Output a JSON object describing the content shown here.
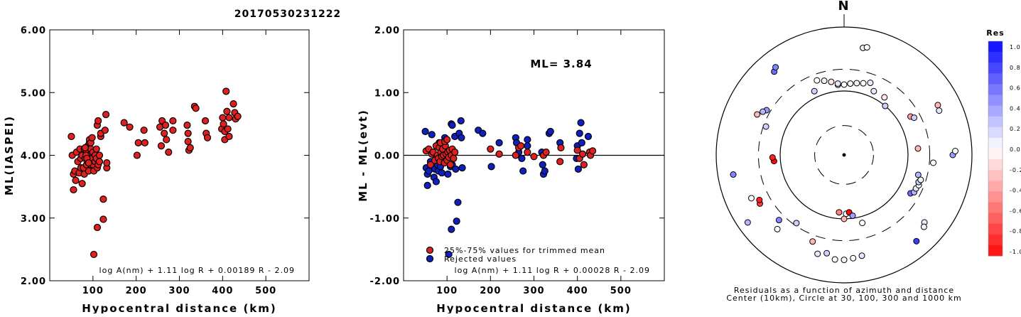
{
  "title": "20170530231222",
  "north_label": "N",
  "chart_data": [
    {
      "type": "scatter",
      "id": "left",
      "xlabel": "Hypocentral distance (km)",
      "ylabel": "ML(IASPEI)",
      "xlim": [
        0,
        600
      ],
      "ylim": [
        2.0,
        6.0
      ],
      "xticks": [
        "100",
        "200",
        "300",
        "400",
        "500"
      ],
      "yticks": [
        "2.00",
        "3.00",
        "4.00",
        "5.00",
        "6.00"
      ],
      "formula": "log A(nm) + 1.11 log R + 0.00189 R - 2.09",
      "point_color": "#e02020",
      "points": [
        [
          50,
          4.3
        ],
        [
          52,
          4.0
        ],
        [
          55,
          3.45
        ],
        [
          55,
          3.7
        ],
        [
          58,
          3.75
        ],
        [
          60,
          3.6
        ],
        [
          62,
          4.05
        ],
        [
          65,
          3.9
        ],
        [
          68,
          3.72
        ],
        [
          70,
          4.1
        ],
        [
          72,
          3.8
        ],
        [
          72,
          3.95
        ],
        [
          75,
          3.55
        ],
        [
          75,
          4.0
        ],
        [
          78,
          3.8
        ],
        [
          80,
          4.1
        ],
        [
          80,
          3.7
        ],
        [
          82,
          3.95
        ],
        [
          85,
          4.05
        ],
        [
          85,
          3.85
        ],
        [
          88,
          4.15
        ],
        [
          88,
          3.9
        ],
        [
          90,
          3.75
        ],
        [
          92,
          4.0
        ],
        [
          92,
          4.2
        ],
        [
          95,
          3.85
        ],
        [
          95,
          4.1
        ],
        [
          98,
          3.95
        ],
        [
          100,
          4.05
        ],
        [
          100,
          3.85
        ],
        [
          102,
          3.75
        ],
        [
          105,
          4.0
        ],
        [
          105,
          3.9
        ],
        [
          108,
          3.95
        ],
        [
          108,
          4.1
        ],
        [
          110,
          3.8
        ],
        [
          112,
          3.85
        ],
        [
          115,
          3.9
        ],
        [
          115,
          4.0
        ],
        [
          118,
          4.3
        ],
        [
          92,
          4.25
        ],
        [
          95,
          4.2
        ],
        [
          98,
          4.28
        ],
        [
          82,
          4.12
        ],
        [
          84,
          4.0
        ],
        [
          86,
          3.95
        ],
        [
          90,
          3.88
        ],
        [
          110,
          4.48
        ],
        [
          112,
          4.55
        ],
        [
          118,
          4.35
        ],
        [
          128,
          4.4
        ],
        [
          130,
          4.65
        ],
        [
          132,
          3.8
        ],
        [
          132,
          3.88
        ],
        [
          102,
          2.42
        ],
        [
          110,
          2.85
        ],
        [
          124,
          2.98
        ],
        [
          124,
          3.3
        ],
        [
          172,
          4.52
        ],
        [
          185,
          4.45
        ],
        [
          202,
          4.0
        ],
        [
          205,
          4.2
        ],
        [
          218,
          4.4
        ],
        [
          220,
          4.2
        ],
        [
          255,
          4.45
        ],
        [
          258,
          4.15
        ],
        [
          260,
          4.55
        ],
        [
          265,
          4.35
        ],
        [
          268,
          4.48
        ],
        [
          270,
          4.25
        ],
        [
          275,
          4.05
        ],
        [
          285,
          4.55
        ],
        [
          285,
          4.4
        ],
        [
          318,
          4.48
        ],
        [
          320,
          4.35
        ],
        [
          320,
          4.22
        ],
        [
          322,
          4.08
        ],
        [
          325,
          4.12
        ],
        [
          335,
          4.78
        ],
        [
          338,
          4.75
        ],
        [
          360,
          4.55
        ],
        [
          362,
          4.35
        ],
        [
          365,
          4.28
        ],
        [
          398,
          4.42
        ],
        [
          400,
          4.6
        ],
        [
          402,
          4.5
        ],
        [
          405,
          4.25
        ],
        [
          405,
          4.38
        ],
        [
          408,
          5.02
        ],
        [
          410,
          4.7
        ],
        [
          412,
          4.42
        ],
        [
          415,
          4.6
        ],
        [
          415,
          4.3
        ],
        [
          425,
          4.82
        ],
        [
          428,
          4.68
        ],
        [
          430,
          4.58
        ],
        [
          435,
          4.62
        ]
      ]
    },
    {
      "type": "scatter",
      "id": "middle",
      "xlabel": "Hypocentral distance (km)",
      "ylabel": "ML - ML(evt)",
      "xlim": [
        0,
        600
      ],
      "ylim": [
        -2.0,
        2.0
      ],
      "xticks": [
        "100",
        "200",
        "300",
        "400",
        "500"
      ],
      "yticks": [
        "-2.00",
        "-1.00",
        "0.00",
        "1.00",
        "2.00"
      ],
      "annotation": "ML= 3.84",
      "formula": "log A(nm) + 1.11 log R + 0.00028 R - 2.09",
      "legend": [
        {
          "label": "25%-75% values for trimmed mean",
          "color": "#e02020"
        },
        {
          "label": "Rejected values",
          "color": "#1020c0"
        }
      ],
      "rejected": [
        [
          50,
          0.38
        ],
        [
          52,
          -0.2
        ],
        [
          55,
          -0.3
        ],
        [
          55,
          -0.48
        ],
        [
          58,
          -0.25
        ],
        [
          62,
          -0.1
        ],
        [
          65,
          0.33
        ],
        [
          70,
          -0.35
        ],
        [
          72,
          -0.22
        ],
        [
          75,
          -0.42
        ],
        [
          78,
          -0.15
        ],
        [
          80,
          -0.25
        ],
        [
          82,
          0.2
        ],
        [
          85,
          -0.18
        ],
        [
          88,
          -0.28
        ],
        [
          90,
          -0.1
        ],
        [
          95,
          0.28
        ],
        [
          100,
          -0.05
        ],
        [
          102,
          -0.3
        ],
        [
          108,
          -0.18
        ],
        [
          110,
          0.5
        ],
        [
          112,
          0.48
        ],
        [
          112,
          -0.15
        ],
        [
          118,
          0.3
        ],
        [
          120,
          -0.22
        ],
        [
          125,
          -0.75
        ],
        [
          128,
          0.35
        ],
        [
          132,
          0.55
        ],
        [
          133,
          0.28
        ],
        [
          135,
          -0.2
        ],
        [
          104,
          -1.58
        ],
        [
          110,
          -1.18
        ],
        [
          122,
          -1.05
        ],
        [
          172,
          0.4
        ],
        [
          182,
          0.35
        ],
        [
          202,
          -0.18
        ],
        [
          220,
          0.2
        ],
        [
          258,
          0.28
        ],
        [
          260,
          0.2
        ],
        [
          265,
          0.05
        ],
        [
          272,
          -0.05
        ],
        [
          275,
          -0.25
        ],
        [
          285,
          0.15
        ],
        [
          285,
          0.25
        ],
        [
          318,
          0.05
        ],
        [
          320,
          -0.15
        ],
        [
          322,
          -0.3
        ],
        [
          325,
          -0.25
        ],
        [
          335,
          0.35
        ],
        [
          338,
          0.38
        ],
        [
          360,
          0.2
        ],
        [
          398,
          -0.05
        ],
        [
          400,
          0.15
        ],
        [
          402,
          -0.22
        ],
        [
          405,
          0.35
        ],
        [
          408,
          0.52
        ],
        [
          410,
          0.2
        ],
        [
          425,
          0.3
        ]
      ],
      "trimmed": [
        [
          52,
          0.07
        ],
        [
          58,
          0.1
        ],
        [
          62,
          -0.15
        ],
        [
          65,
          0.02
        ],
        [
          68,
          0.05
        ],
        [
          72,
          -0.08
        ],
        [
          75,
          0.15
        ],
        [
          78,
          0.0
        ],
        [
          80,
          -0.05
        ],
        [
          82,
          0.12
        ],
        [
          84,
          -0.1
        ],
        [
          86,
          0.05
        ],
        [
          88,
          -0.02
        ],
        [
          90,
          0.1
        ],
        [
          92,
          0.0
        ],
        [
          94,
          -0.12
        ],
        [
          96,
          0.15
        ],
        [
          98,
          0.02
        ],
        [
          100,
          -0.08
        ],
        [
          102,
          0.05
        ],
        [
          104,
          -0.03
        ],
        [
          106,
          0.08
        ],
        [
          108,
          -0.15
        ],
        [
          110,
          0.0
        ],
        [
          112,
          0.1
        ],
        [
          115,
          -0.05
        ],
        [
          118,
          0.05
        ],
        [
          85,
          0.2
        ],
        [
          95,
          0.22
        ],
        [
          100,
          0.25
        ],
        [
          200,
          0.1
        ],
        [
          220,
          0.02
        ],
        [
          258,
          0.0
        ],
        [
          265,
          0.12
        ],
        [
          270,
          0.15
        ],
        [
          285,
          0.05
        ],
        [
          300,
          -0.02
        ],
        [
          322,
          0.0
        ],
        [
          328,
          0.05
        ],
        [
          360,
          -0.1
        ],
        [
          362,
          0.12
        ],
        [
          400,
          0.08
        ],
        [
          405,
          -0.05
        ],
        [
          412,
          0.02
        ],
        [
          415,
          -0.15
        ],
        [
          428,
          0.05
        ],
        [
          430,
          0.0
        ],
        [
          435,
          0.07
        ]
      ]
    },
    {
      "type": "scatter",
      "id": "polar",
      "caption_lines": [
        "Residuals as a function of azimuth and distance",
        "Center (10km), Circle at 30, 100, 300 and 1000 km"
      ],
      "colorbar": {
        "title": "Res",
        "ticks": [
          "1.0",
          "0.8",
          "0.6",
          "0.4",
          "0.2",
          "0.0",
          "-0.2",
          "-0.4",
          "-0.6",
          "-0.8",
          "-1.0"
        ],
        "range": [
          -1.0,
          1.0
        ]
      },
      "stations": [
        [
          355,
          0.55,
          0.05
        ],
        [
          0,
          0.55,
          0.0
        ],
        [
          5,
          0.56,
          -0.05
        ],
        [
          10,
          0.57,
          0.05
        ],
        [
          -5,
          0.56,
          0.1
        ],
        [
          15,
          0.58,
          0.0
        ],
        [
          -10,
          0.58,
          -0.1
        ],
        [
          20,
          0.6,
          0.08
        ],
        [
          -15,
          0.6,
          0.05
        ],
        [
          -20,
          0.62,
          0.0
        ],
        [
          25,
          0.55,
          0.1
        ],
        [
          -25,
          0.55,
          0.2
        ],
        [
          10,
          0.85,
          0.05
        ],
        [
          12,
          0.86,
          0.0
        ],
        [
          -40,
          0.85,
          0.6
        ],
        [
          -38,
          0.87,
          0.5
        ],
        [
          -60,
          0.7,
          0.4
        ],
        [
          -62,
          0.72,
          0.3
        ],
        [
          -65,
          0.75,
          -0.3
        ],
        [
          -70,
          0.65,
          0.2
        ],
        [
          -100,
          0.88,
          0.5
        ],
        [
          -95,
          0.55,
          -1.0
        ],
        [
          -92,
          0.56,
          -0.9
        ],
        [
          -115,
          0.8,
          0.0
        ],
        [
          -120,
          0.76,
          -0.8
        ],
        [
          -118,
          0.75,
          -0.9
        ],
        [
          -125,
          0.92,
          0.3
        ],
        [
          -135,
          0.72,
          0.5
        ],
        [
          -138,
          0.78,
          0.0
        ],
        [
          -145,
          0.65,
          0.2
        ],
        [
          -160,
          0.72,
          -0.3
        ],
        [
          -165,
          0.8,
          0.1
        ],
        [
          -170,
          0.78,
          0.2
        ],
        [
          -175,
          0.82,
          0.0
        ],
        [
          180,
          0.82,
          0.05
        ],
        [
          175,
          0.81,
          0.0
        ],
        [
          170,
          0.8,
          0.1
        ],
        [
          -175,
          0.45,
          -0.5
        ],
        [
          178,
          0.46,
          0.0
        ],
        [
          175,
          0.45,
          -1.0
        ],
        [
          180,
          0.5,
          -0.3
        ],
        [
          172,
          0.48,
          0.4
        ],
        [
          165,
          0.55,
          0.0
        ],
        [
          120,
          0.6,
          0.6
        ],
        [
          118,
          0.62,
          0.3
        ],
        [
          115,
          0.62,
          0.1
        ],
        [
          112,
          0.63,
          0.0
        ],
        [
          110,
          0.62,
          0.2
        ],
        [
          108,
          0.63,
          0.05
        ],
        [
          105,
          0.6,
          0.3
        ],
        [
          85,
          0.58,
          -0.3
        ],
        [
          95,
          0.7,
          0.0
        ],
        [
          90,
          0.85,
          0.4
        ],
        [
          88,
          0.87,
          0.0
        ],
        [
          60,
          0.6,
          -0.4
        ],
        [
          62,
          0.62,
          0.2
        ],
        [
          40,
          0.5,
          0.2
        ],
        [
          35,
          0.55,
          -0.1
        ],
        [
          65,
          0.82,
          0.1
        ],
        [
          62,
          0.83,
          -0.3
        ],
        [
          130,
          0.82,
          0.1
        ],
        [
          132,
          0.84,
          0.05
        ],
        [
          140,
          0.88,
          0.8
        ]
      ]
    }
  ]
}
